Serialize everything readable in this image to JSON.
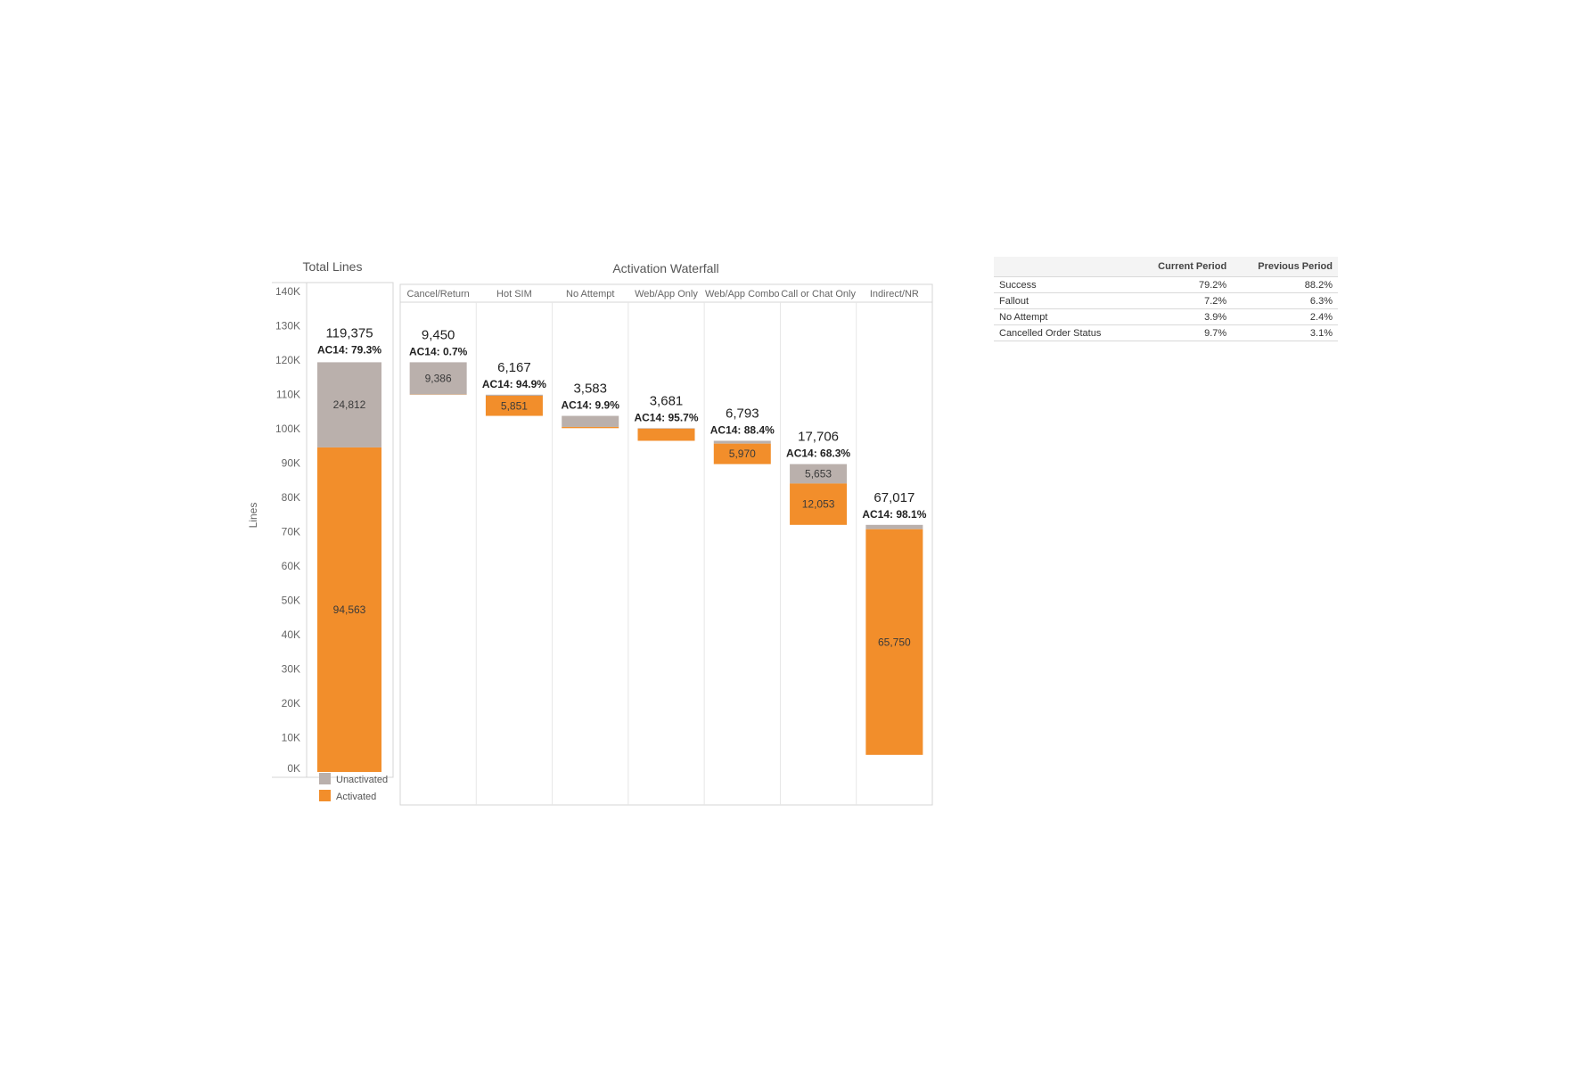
{
  "total_lines": {
    "title": "Total Lines",
    "ylabel": "Lines"
  },
  "waterfall": {
    "title": "Activation Waterfall"
  },
  "legend": {
    "unactivated": "Unactivated",
    "activated": "Activated"
  },
  "colors": {
    "activated": "#f28e2b",
    "unactivated": "#bab0ac",
    "frame": "#d4d4d4"
  },
  "chart_data": [
    {
      "type": "bar",
      "title": "Total Lines",
      "ylabel": "Lines",
      "ylim": [
        0,
        140000
      ],
      "ytick_labels": [
        "0K",
        "10K",
        "20K",
        "30K",
        "40K",
        "50K",
        "60K",
        "70K",
        "80K",
        "90K",
        "100K",
        "110K",
        "120K",
        "130K",
        "140K"
      ],
      "categories": [
        "Total Lines"
      ],
      "series": [
        {
          "name": "Activated",
          "values": [
            94563
          ],
          "labels": [
            "94,563"
          ]
        },
        {
          "name": "Unactivated",
          "values": [
            24812
          ],
          "labels": [
            "24,812"
          ]
        }
      ],
      "totals": [
        "119,375"
      ],
      "ac14": [
        "AC14: 79.3%"
      ],
      "legend_position": "bottom-left"
    },
    {
      "type": "bar",
      "title": "Activation Waterfall",
      "ylim": [
        0,
        140000
      ],
      "categories": [
        "Cancel/Return",
        "Hot SIM",
        "No Attempt",
        "Web/App Only",
        "Web/App Combo",
        "Call or Chat Only",
        "Indirect/NR"
      ],
      "series": [
        {
          "name": "Activated",
          "values": [
            64,
            5851,
            355,
            3524,
            5970,
            12053,
            65750
          ],
          "labels": [
            "",
            "5,851",
            "",
            "",
            "5,970",
            "12,053",
            "65,750"
          ]
        },
        {
          "name": "Unactivated",
          "values": [
            9386,
            316,
            3228,
            157,
            823,
            5653,
            1267
          ],
          "labels": [
            "9,386",
            "",
            "",
            "",
            "",
            "5,653",
            ""
          ]
        }
      ],
      "totals": [
        "9,450",
        "6,167",
        "3,583",
        "3,681",
        "6,793",
        "17,706",
        "67,017"
      ],
      "ac14": [
        "AC14: 0.7%",
        "AC14: 94.9%",
        "AC14: 9.9%",
        "AC14: 95.7%",
        "AC14: 88.4%",
        "AC14: 68.3%",
        "AC14: 98.1%"
      ]
    }
  ],
  "summary_table": {
    "columns": [
      "",
      "Current Period",
      "Previous Period"
    ],
    "rows": [
      {
        "label": "Success",
        "current": "79.2%",
        "previous": "88.2%"
      },
      {
        "label": "Fallout",
        "current": "7.2%",
        "previous": "6.3%"
      },
      {
        "label": "No Attempt",
        "current": "3.9%",
        "previous": "2.4%"
      },
      {
        "label": "Cancelled Order Status",
        "current": "9.7%",
        "previous": "3.1%"
      }
    ]
  }
}
